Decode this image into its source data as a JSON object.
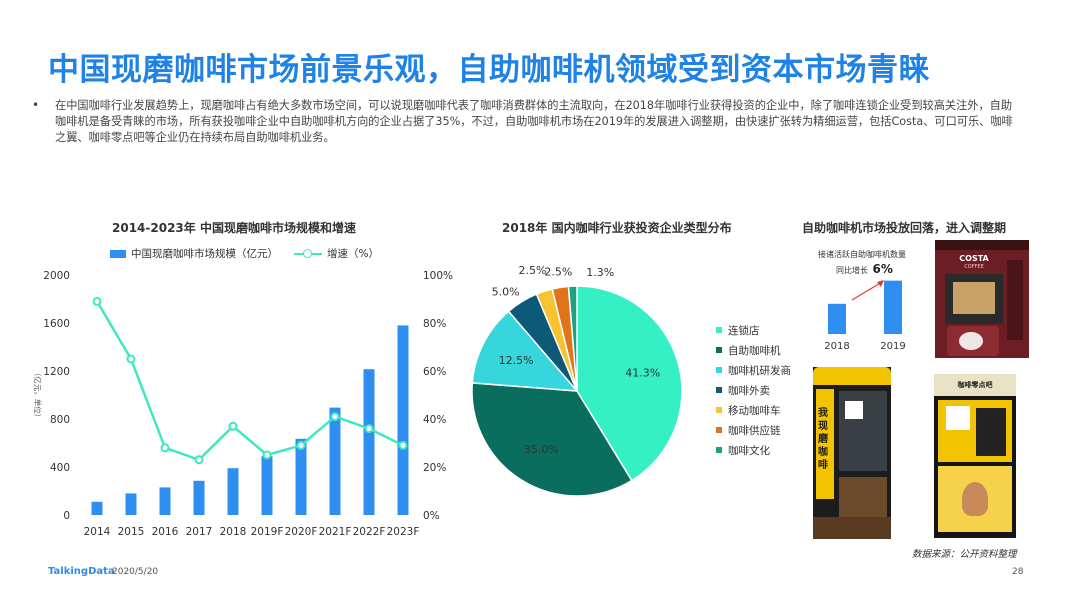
{
  "title": "中国现磨咖啡市场前景乐观，自助咖啡机领域受到资本市场青睐",
  "bullet": "•",
  "intro": "在中国咖啡行业发展趋势上，现磨咖啡占有绝大多数市场空间，可以说现磨咖啡代表了咖啡消费群体的主流取向，在2018年咖啡行业获得投资的企业中，除了咖啡连锁企业受到较高关注外，自助咖啡机是备受青睐的市场，所有获投咖啡企业中自助咖啡机方向的企业占据了35%，不过，自助咖啡机市场在2019年的发展进入调整期，由快速扩张转为精细运营，包括Costa、可口可乐、咖啡之翼、咖啡零点吧等企业仍在持续布局自助咖啡机业务。",
  "chart_data": [
    {
      "type": "bar+line",
      "title": "2014-2023年  中国现磨咖啡市场规模和增速",
      "categories": [
        "2014",
        "2015",
        "2016",
        "2017",
        "2018",
        "2019F",
        "2020F",
        "2021F",
        "2022F",
        "2023F"
      ],
      "series": [
        {
          "name": "中国现磨咖啡市场规模（亿元）",
          "type": "bar",
          "axis": "left",
          "color": "#2e8ff0",
          "values": [
            110,
            180,
            230,
            285,
            390,
            490,
            635,
            895,
            1215,
            1580
          ]
        },
        {
          "name": "增速（%）",
          "type": "line",
          "axis": "right",
          "color": "#3de8c3",
          "values": [
            89,
            65,
            28,
            23,
            37,
            25,
            29,
            41,
            36,
            29
          ]
        }
      ],
      "ylabel": "（亿元，单位）",
      "ylim_left": [
        0,
        2000
      ],
      "yticks_left": [
        "0",
        "400",
        "800",
        "1200",
        "1600",
        "2000"
      ],
      "ylim_right": [
        0,
        100
      ],
      "yticks_right": [
        "0%",
        "20%",
        "40%",
        "60%",
        "80%",
        "100%"
      ],
      "legend": "top"
    },
    {
      "type": "pie",
      "title": "2018年  国内咖啡行业获投资企业类型分布",
      "slices": [
        {
          "name": "连锁店",
          "value": 41.3,
          "label": "41.3%",
          "color": "#35f0c4"
        },
        {
          "name": "自助咖啡机",
          "value": 35.0,
          "label": "35.0%",
          "color": "#0a6e5e"
        },
        {
          "name": "咖啡机研发商",
          "value": 12.5,
          "label": "12.5%",
          "color": "#37d6dc"
        },
        {
          "name": "咖啡外卖",
          "value": 5.0,
          "label": "5.0%",
          "color": "#0c5a78"
        },
        {
          "name": "移动咖啡车",
          "value": 2.5,
          "label": "2.5%",
          "color": "#f5c430"
        },
        {
          "name": "咖啡供应链",
          "value": 2.5,
          "label": "2.5%",
          "color": "#e0741c"
        },
        {
          "name": "咖啡文化",
          "value": 1.3,
          "label": "1.3%",
          "color": "#1ea082"
        }
      ],
      "legend": "right"
    },
    {
      "type": "bar",
      "title": "自助咖啡机市场投放回落，进入调整期",
      "annotation_line1": "接诸活跃自助咖啡机数量",
      "annotation_line2": "同比增长",
      "annotation_value": "6%",
      "categories": [
        "2018",
        "2019"
      ],
      "values": [
        100,
        106
      ],
      "color": "#2e8ff0"
    }
  ],
  "machines": {
    "costa_brand": "COSTA",
    "costa_sub": "COFFEE",
    "kiosk2_vert": "我现磨咖啡",
    "kiosk3_head": "咖啡零点吧"
  },
  "source": "数据来源：公开资料整理",
  "footer": {
    "logo": "TalkingData",
    "date": "2020/5/20",
    "page": "28"
  }
}
